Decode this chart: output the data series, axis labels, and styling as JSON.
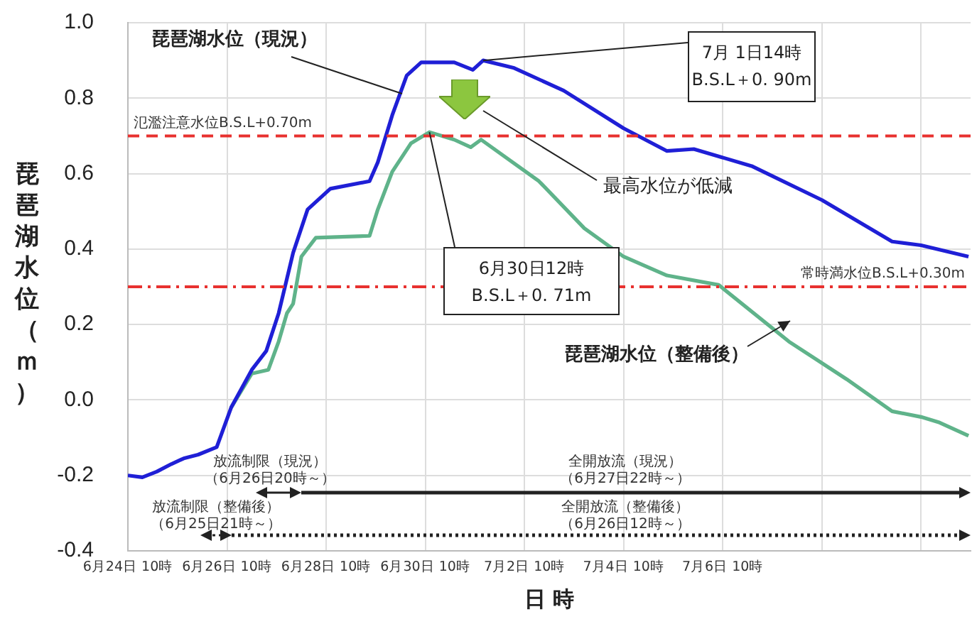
{
  "chart_data": {
    "type": "line",
    "xlabel": "日 時",
    "ylabel": "琵琶湖水位（ｍ）",
    "xlim": [
      "--06-24T10:00",
      "--07-11T10:00"
    ],
    "xticks": [
      {
        "value": "--06-24T10:00",
        "label": "6月24日 10時"
      },
      {
        "value": "--06-26T10:00",
        "label": "6月26日 10時"
      },
      {
        "value": "--06-28T10:00",
        "label": "6月28日 10時"
      },
      {
        "value": "--06-30T10:00",
        "label": "6月30日 10時"
      },
      {
        "value": "--07-02T10:00",
        "label": "7月2日 10時"
      },
      {
        "value": "--07-04T10:00",
        "label": "7月4日 10時"
      },
      {
        "value": "--07-06T10:00",
        "label": "7月6日 10時"
      },
      {
        "value": "--07-08T10:00",
        "label": null
      },
      {
        "value": "--07-10T10:00",
        "label": null
      }
    ],
    "ylim": [
      -0.4,
      1.0
    ],
    "yticks": [
      {
        "value": -0.4,
        "label": "-0.4"
      },
      {
        "value": -0.2,
        "label": "-0.2"
      },
      {
        "value": 0,
        "label": "0.0"
      },
      {
        "value": 0.2,
        "label": "0.2"
      },
      {
        "value": 0.4,
        "label": "0.4"
      },
      {
        "value": 0.6,
        "label": "0.6"
      },
      {
        "value": 0.8,
        "label": "0.8"
      },
      {
        "value": 1,
        "label": "1.0"
      }
    ],
    "grid": true,
    "legend": false,
    "marker": "none",
    "series": [
      {
        "name": "琵琶湖水位（現況）",
        "color": "#1f1fd6",
        "x": [
          "--06-24T10:00",
          "--06-24T17:00",
          "--06-25T00:00",
          "--06-25T07:00",
          "--06-25T13:00",
          "--06-25T20:00",
          "--06-26T05:00",
          "--06-26T12:00",
          "--06-26T22:00",
          "--06-27T05:00",
          "--06-27T11:00",
          "--06-27T18:00",
          "--06-28T01:00",
          "--06-28T12:00",
          "--06-29T07:00",
          "--06-29T11:00",
          "--06-29T18:00",
          "--06-30T01:00",
          "--06-30T08:00",
          "--07-01T00:00",
          "--07-01T09:00",
          "--07-01T14:00",
          "--07-02T05:00",
          "--07-03T05:00",
          "--07-04T10:00",
          "--07-05T07:00",
          "--07-05T20:00",
          "--07-07T00:00",
          "--07-08T10:00",
          "--07-09T20:00",
          "--07-10T10:00",
          "--07-11T09:00"
        ],
        "values": [
          -0.2,
          -0.205,
          -0.19,
          -0.17,
          -0.155,
          -0.145,
          -0.125,
          -0.02,
          0.08,
          0.13,
          0.23,
          0.39,
          0.505,
          0.56,
          0.58,
          0.63,
          0.755,
          0.86,
          0.895,
          0.895,
          0.875,
          0.9,
          0.88,
          0.82,
          0.72,
          0.66,
          0.665,
          0.62,
          0.53,
          0.42,
          0.41,
          0.38
        ]
      },
      {
        "name": "琵琶湖水位（整備後）",
        "color": "#5fb38a",
        "x": [
          "--06-26T12:00",
          "--06-26T22:00",
          "--06-27T06:00",
          "--06-27T11:00",
          "--06-27T15:00",
          "--06-27T18:00",
          "--06-27T22:00",
          "--06-28T05:00",
          "--06-29T07:00",
          "--06-29T11:00",
          "--06-29T18:00",
          "--06-30T03:00",
          "--06-30T12:00",
          "--07-01T00:00",
          "--07-01T08:00",
          "--07-01T13:00",
          "--07-02T17:00",
          "--07-03T15:00",
          "--07-04T10:00",
          "--07-05T07:00",
          "--07-06T08:00",
          "--07-07T18:00",
          "--07-08T22:00",
          "--07-09T20:00",
          "--07-10T10:00",
          "--07-10T19:00",
          "--07-11T09:00"
        ],
        "values": [
          -0.02,
          0.07,
          0.08,
          0.155,
          0.23,
          0.255,
          0.38,
          0.43,
          0.435,
          0.505,
          0.605,
          0.68,
          0.71,
          0.69,
          0.67,
          0.69,
          0.58,
          0.455,
          0.38,
          0.33,
          0.305,
          0.155,
          0.055,
          -0.03,
          -0.045,
          -0.06,
          -0.095
        ]
      }
    ],
    "ref_lines": [
      {
        "axis": "y",
        "value": 0.7,
        "label": "氾濫注意水位B.S.L+0.70m",
        "color": "#e8312f",
        "line_style": "dashed"
      },
      {
        "axis": "y",
        "value": 0.3,
        "label": "常時満水位B.S.L+0.30m",
        "color": "#e8312f",
        "line_style": "dashdot"
      }
    ],
    "annotations": [
      {
        "text": "7月 1日14時\nB.S.L＋0. 90m",
        "x": "--07-01T14:00",
        "y": 0.9
      },
      {
        "text": "6月30日12時\nB.S.L＋0. 71m",
        "x": "--06-30T12:00",
        "y": 0.71
      },
      "最高水位が低減",
      "放流制限（現況）（6月26日20時～）",
      "全開放流（現況）（6月27日22時～）",
      "放流制限（整備後）（6月25日21時～）",
      "全開放流（整備後）（6月26日12時～）"
    ]
  }
}
